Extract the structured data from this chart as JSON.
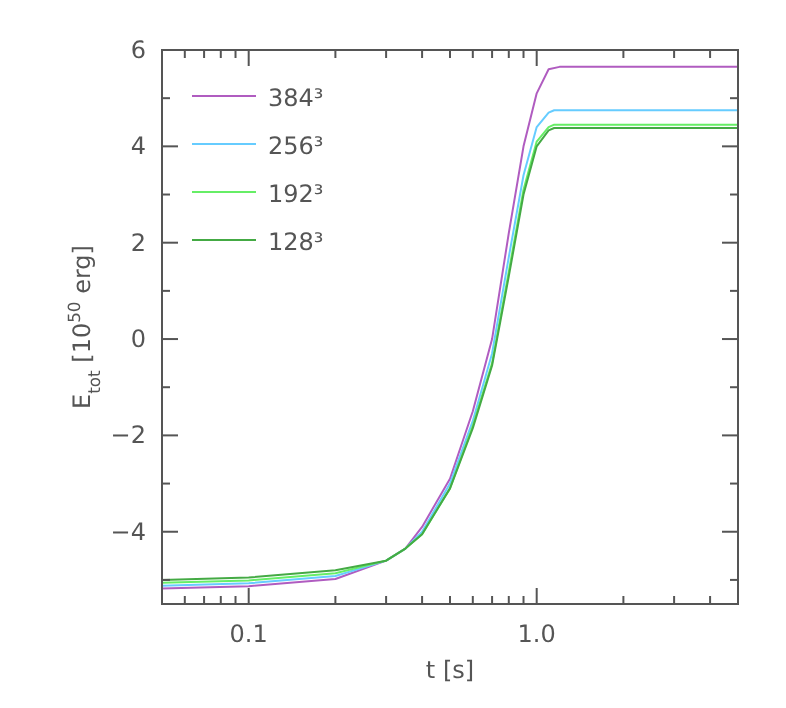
{
  "chart_data": {
    "type": "line",
    "xlabel": "t [s]",
    "ylabel": "E$_{tot}$ [10$^{50}$ erg]",
    "log": "x",
    "xlim": [
      0.05,
      5
    ],
    "ylim": [
      -5.5,
      6
    ],
    "xticks": [
      {
        "value": 0.05,
        "label": null
      },
      {
        "value": 0.06,
        "label": null
      },
      {
        "value": 0.07,
        "label": null
      },
      {
        "value": 0.08,
        "label": null
      },
      {
        "value": 0.09,
        "label": null
      },
      0.1,
      {
        "value": 0.2,
        "label": null
      },
      {
        "value": 0.3,
        "label": null
      },
      {
        "value": 0.4,
        "label": null
      },
      {
        "value": 0.5,
        "label": null
      },
      {
        "value": 0.6,
        "label": null
      },
      {
        "value": 0.7,
        "label": null
      },
      {
        "value": 0.8,
        "label": null
      },
      {
        "value": 0.9,
        "label": null
      },
      {
        "value": 1,
        "label": "1.0"
      },
      {
        "value": 2,
        "label": null
      },
      {
        "value": 3,
        "label": null
      },
      {
        "value": 4,
        "label": null
      },
      {
        "value": 5,
        "label": null
      }
    ],
    "yticks": [
      {
        "value": -5,
        "label": null
      },
      {
        "value": -4,
        "label": "−4"
      },
      {
        "value": -3,
        "label": null
      },
      {
        "value": -2,
        "label": "−2"
      },
      {
        "value": -1,
        "label": null
      },
      0,
      {
        "value": 1,
        "label": null
      },
      2,
      {
        "value": 3,
        "label": null
      },
      4,
      {
        "value": 5,
        "label": null
      },
      6
    ],
    "legend": "top left",
    "grid": false,
    "series": [
      {
        "name": "384³",
        "color": "#b05cc0",
        "x": [
          0.05,
          0.1,
          0.2,
          0.3,
          0.35,
          0.4,
          0.5,
          0.6,
          0.7,
          0.8,
          0.9,
          1.0,
          1.1,
          1.2,
          5
        ],
        "values": [
          -5.18,
          -5.13,
          -4.98,
          -4.6,
          -4.35,
          -3.9,
          -2.9,
          -1.5,
          0,
          2.2,
          4.0,
          5.1,
          5.6,
          5.65,
          5.65
        ]
      },
      {
        "name": "256³",
        "color": "#66ccff",
        "x": [
          0.05,
          0.1,
          0.2,
          0.3,
          0.35,
          0.4,
          0.5,
          0.6,
          0.7,
          0.8,
          0.9,
          1.0,
          1.1,
          1.15,
          5
        ],
        "values": [
          -5.12,
          -5.07,
          -4.92,
          -4.6,
          -4.35,
          -4.0,
          -3.0,
          -1.7,
          -0.3,
          1.7,
          3.4,
          4.4,
          4.7,
          4.75,
          4.75
        ]
      },
      {
        "name": "192³",
        "color": "#66ee66",
        "x": [
          0.05,
          0.1,
          0.2,
          0.3,
          0.35,
          0.4,
          0.5,
          0.6,
          0.7,
          0.8,
          0.9,
          1.0,
          1.1,
          1.15,
          5
        ],
        "values": [
          -5.06,
          -5.01,
          -4.86,
          -4.6,
          -4.35,
          -4.05,
          -3.1,
          -1.8,
          -0.5,
          1.4,
          3.1,
          4.1,
          4.4,
          4.45,
          4.45
        ]
      },
      {
        "name": "128³",
        "color": "#44aa44",
        "x": [
          0.05,
          0.1,
          0.2,
          0.3,
          0.35,
          0.4,
          0.5,
          0.6,
          0.7,
          0.8,
          0.9,
          1.0,
          1.1,
          1.15,
          5
        ],
        "values": [
          -5.0,
          -4.95,
          -4.8,
          -4.6,
          -4.35,
          -4.05,
          -3.1,
          -1.85,
          -0.55,
          1.3,
          3.0,
          4.0,
          4.33,
          4.38,
          4.38
        ]
      }
    ]
  }
}
